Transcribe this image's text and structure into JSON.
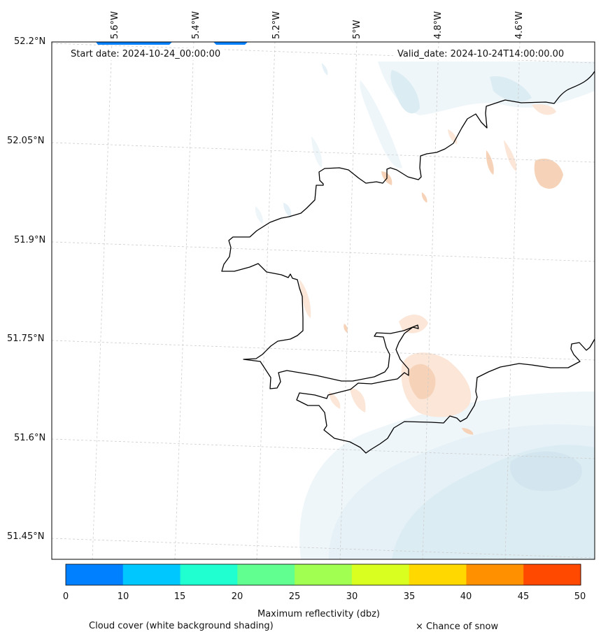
{
  "map": {
    "start_date": "Start date: 2024-10-24_00:00:00",
    "valid_date": "Valid_date: 2024-10-24T14:00:00.00",
    "lon_labels": [
      "5.6°W",
      "5.4°W",
      "5.2°W",
      "5°W",
      "4.8°W",
      "4.6°W"
    ],
    "lat_labels": [
      "52.2°N",
      "52.05°N",
      "51.9°N",
      "51.75°N",
      "51.6°N",
      "51.45°N"
    ]
  },
  "colorbar": {
    "title": "Maximum reflectivity (dbz)",
    "ticks": [
      "0",
      "10",
      "15",
      "20",
      "25",
      "30",
      "35",
      "40",
      "45",
      "50"
    ],
    "colors": [
      "#0080ff",
      "#00c8ff",
      "#20ffd0",
      "#60ff90",
      "#a0ff50",
      "#d8ff20",
      "#ffd800",
      "#ff9000",
      "#ff4800"
    ]
  },
  "legend": {
    "cloud_cover": "Cloud cover (white background shading)",
    "snow": "× Chance of snow"
  },
  "colors": {
    "coast": "#000000",
    "grid": "#cccccc",
    "cloud": "#d6eaf2",
    "warm": "#f6d3b8"
  }
}
